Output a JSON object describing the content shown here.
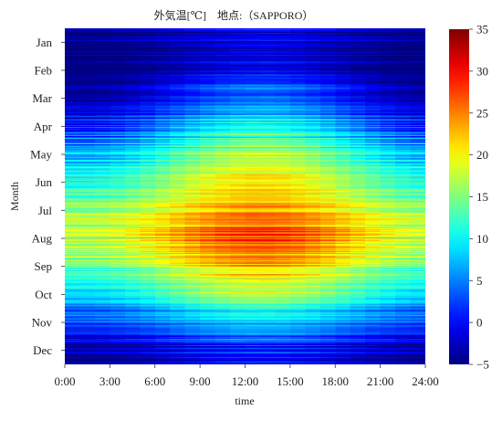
{
  "chart_data": {
    "type": "heatmap",
    "title": "外気温[℃]　地点:（SAPPORO）",
    "xlabel": "time",
    "ylabel": "Month",
    "x_ticks": [
      "0:00",
      "3:00",
      "6:00",
      "9:00",
      "12:00",
      "15:00",
      "18:00",
      "21:00",
      "24:00"
    ],
    "y_ticks": [
      "Jan",
      "Feb",
      "Mar",
      "Apr",
      "May",
      "Jun",
      "Jul",
      "Aug",
      "Sep",
      "Oct",
      "Nov",
      "Dec"
    ],
    "xlim": [
      0,
      24
    ],
    "colorbar": {
      "colormap": "jet",
      "vmin": -5,
      "vmax": 35,
      "ticks": [
        "35",
        "30",
        "25",
        "20",
        "15",
        "10",
        "5",
        "0",
        "−5"
      ]
    },
    "monthly_mean_temperature": [
      -3.5,
      -3.0,
      0.5,
      6.5,
      12.0,
      16.0,
      20.5,
      22.5,
      18.5,
      12.0,
      5.0,
      -1.0
    ],
    "monthly_diurnal_amplitude": [
      2.0,
      3.0,
      4.0,
      4.5,
      5.0,
      4.5,
      4.0,
      4.5,
      4.5,
      4.0,
      3.0,
      2.0
    ],
    "resolution": {
      "hours": 24,
      "days": 365
    }
  }
}
